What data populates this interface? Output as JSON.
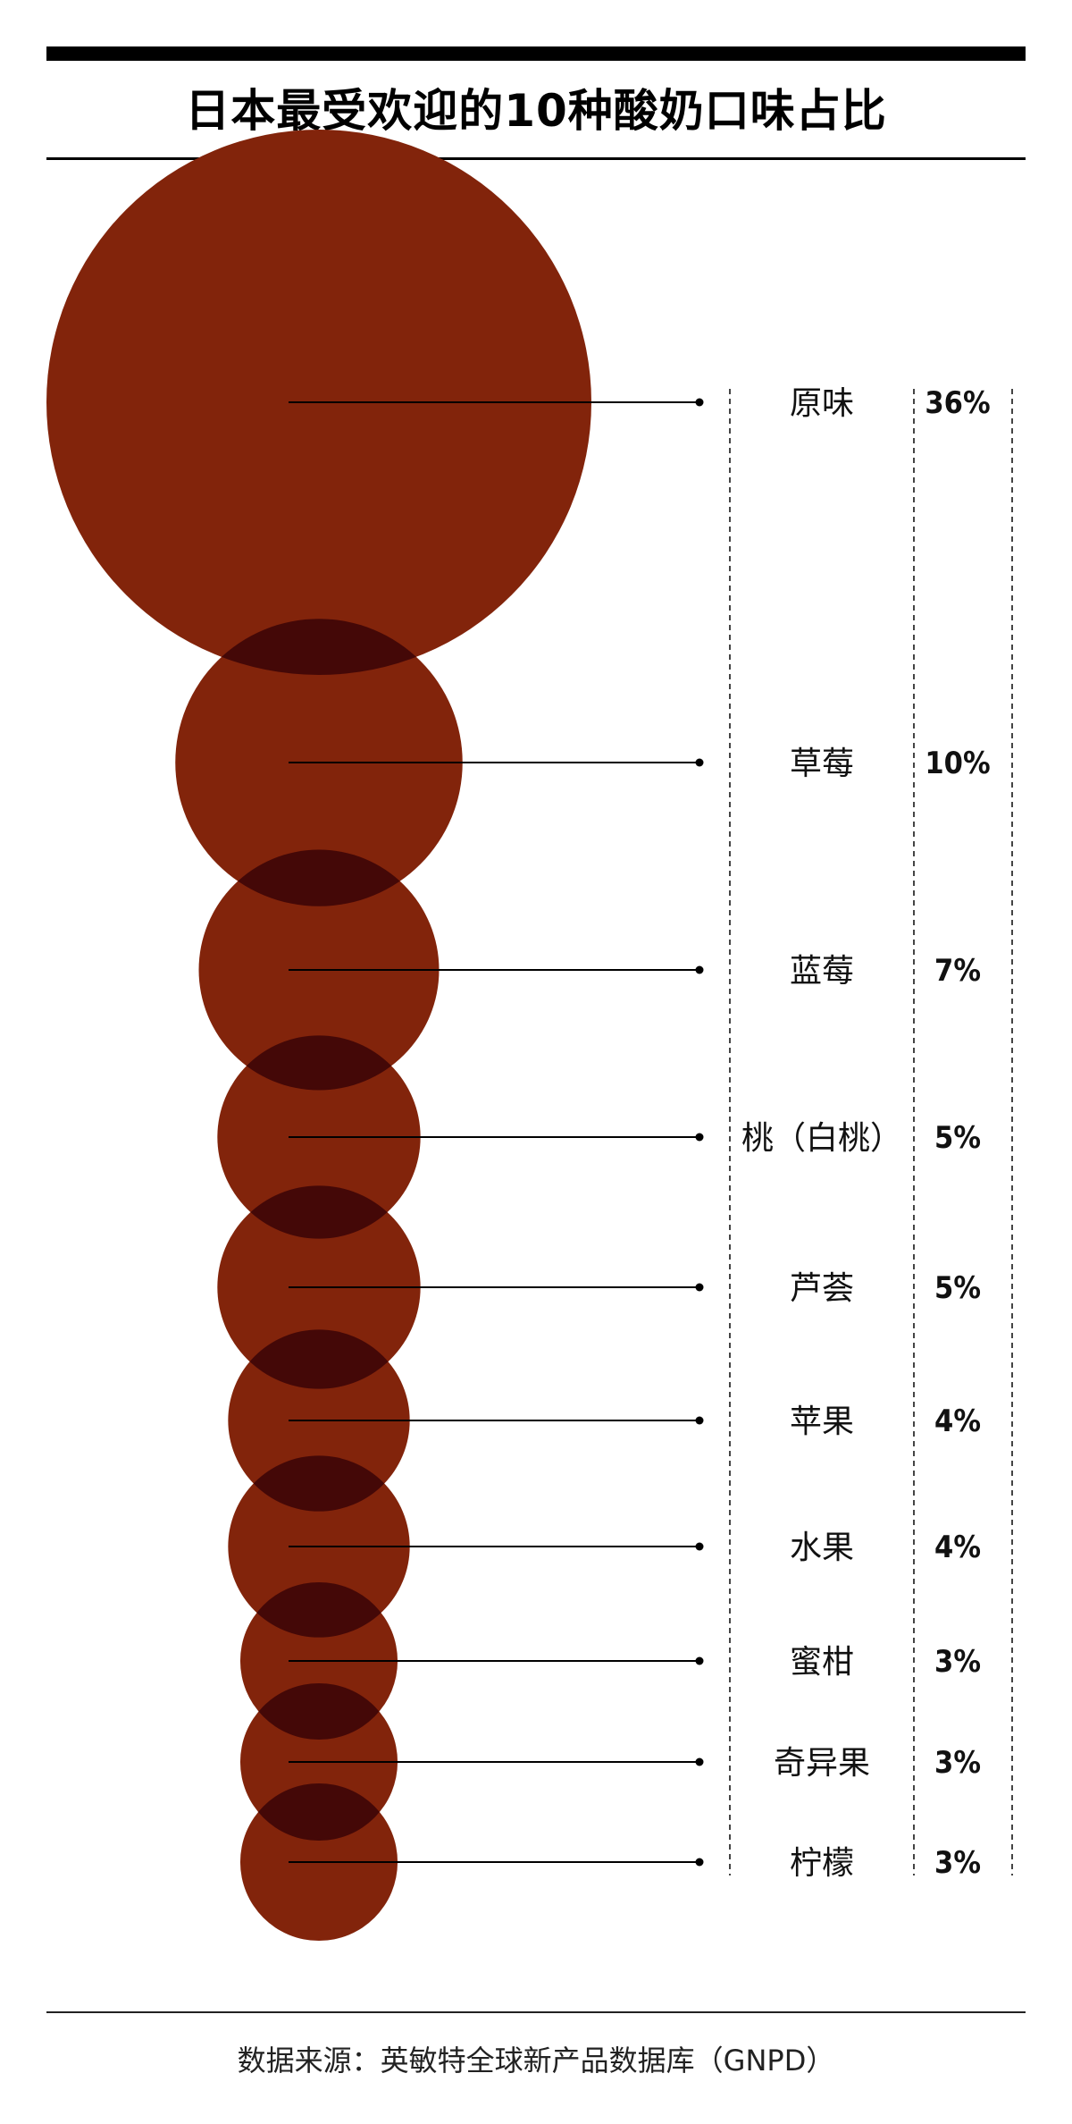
{
  "chart_data": {
    "type": "bubble",
    "title": "日本最受欢迎的10种酸奶口味占比",
    "categories": [
      "原味",
      "草莓",
      "蓝莓",
      "桃（白桃）",
      "芦荟",
      "苹果",
      "水果",
      "蜜柑",
      "奇异果",
      "柠檬"
    ],
    "values": [
      36,
      10,
      7,
      5,
      5,
      4,
      4,
      3,
      3,
      3
    ],
    "value_labels": [
      "36%",
      "10%",
      "7%",
      "5%",
      "5%",
      "4%",
      "4%",
      "3%",
      "3%",
      "3%"
    ],
    "unit": "%",
    "bubble_color": "#82240b",
    "overlap_color": "#440807",
    "legend": "none",
    "grid": false
  },
  "source": "数据来源：英敏特全球新产品数据库（GNPD）"
}
